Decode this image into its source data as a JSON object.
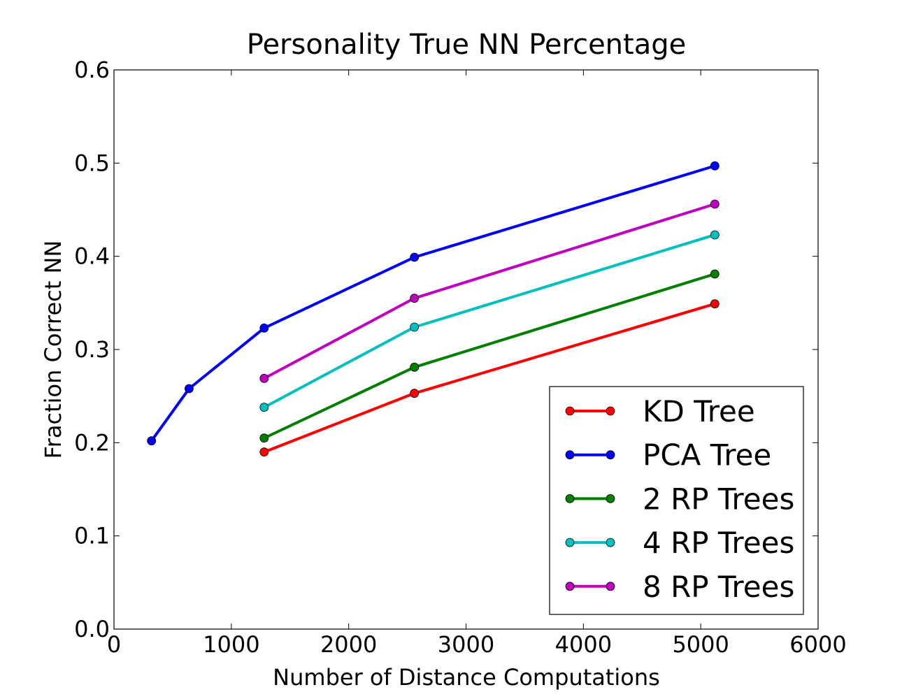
{
  "chart_data": {
    "type": "line",
    "title": "Personality True NN Percentage",
    "xlabel": "Number of Distance Computations",
    "ylabel": "Fraction Correct NN",
    "xlim": [
      0,
      6000
    ],
    "ylim": [
      0.0,
      0.6
    ],
    "xticks": [
      0,
      1000,
      2000,
      3000,
      4000,
      5000,
      6000
    ],
    "xtick_labels": [
      "0",
      "1000",
      "2000",
      "3000",
      "4000",
      "5000",
      "6000"
    ],
    "yticks": [
      0.0,
      0.1,
      0.2,
      0.3,
      0.4,
      0.5,
      0.6
    ],
    "ytick_labels": [
      "0.0",
      "0.1",
      "0.2",
      "0.3",
      "0.4",
      "0.5",
      "0.6"
    ],
    "grid": false,
    "legend_position": "bottom-right",
    "series": [
      {
        "name": "KD Tree",
        "color": "#ff0000",
        "x": [
          1280,
          2560,
          5120
        ],
        "y": [
          0.19,
          0.253,
          0.349
        ]
      },
      {
        "name": "PCA Tree",
        "color": "#0000ff",
        "x": [
          320,
          640,
          1280,
          2560,
          5120
        ],
        "y": [
          0.202,
          0.258,
          0.323,
          0.399,
          0.497
        ]
      },
      {
        "name": "2 RP Trees",
        "color": "#007f00",
        "x": [
          1280,
          2560,
          5120
        ],
        "y": [
          0.205,
          0.281,
          0.381
        ]
      },
      {
        "name": "4 RP Trees",
        "color": "#00bfbf",
        "x": [
          1280,
          2560,
          5120
        ],
        "y": [
          0.238,
          0.324,
          0.423
        ]
      },
      {
        "name": "8 RP Trees",
        "color": "#bf00bf",
        "x": [
          1280,
          2560,
          5120
        ],
        "y": [
          0.269,
          0.355,
          0.456
        ]
      }
    ]
  }
}
